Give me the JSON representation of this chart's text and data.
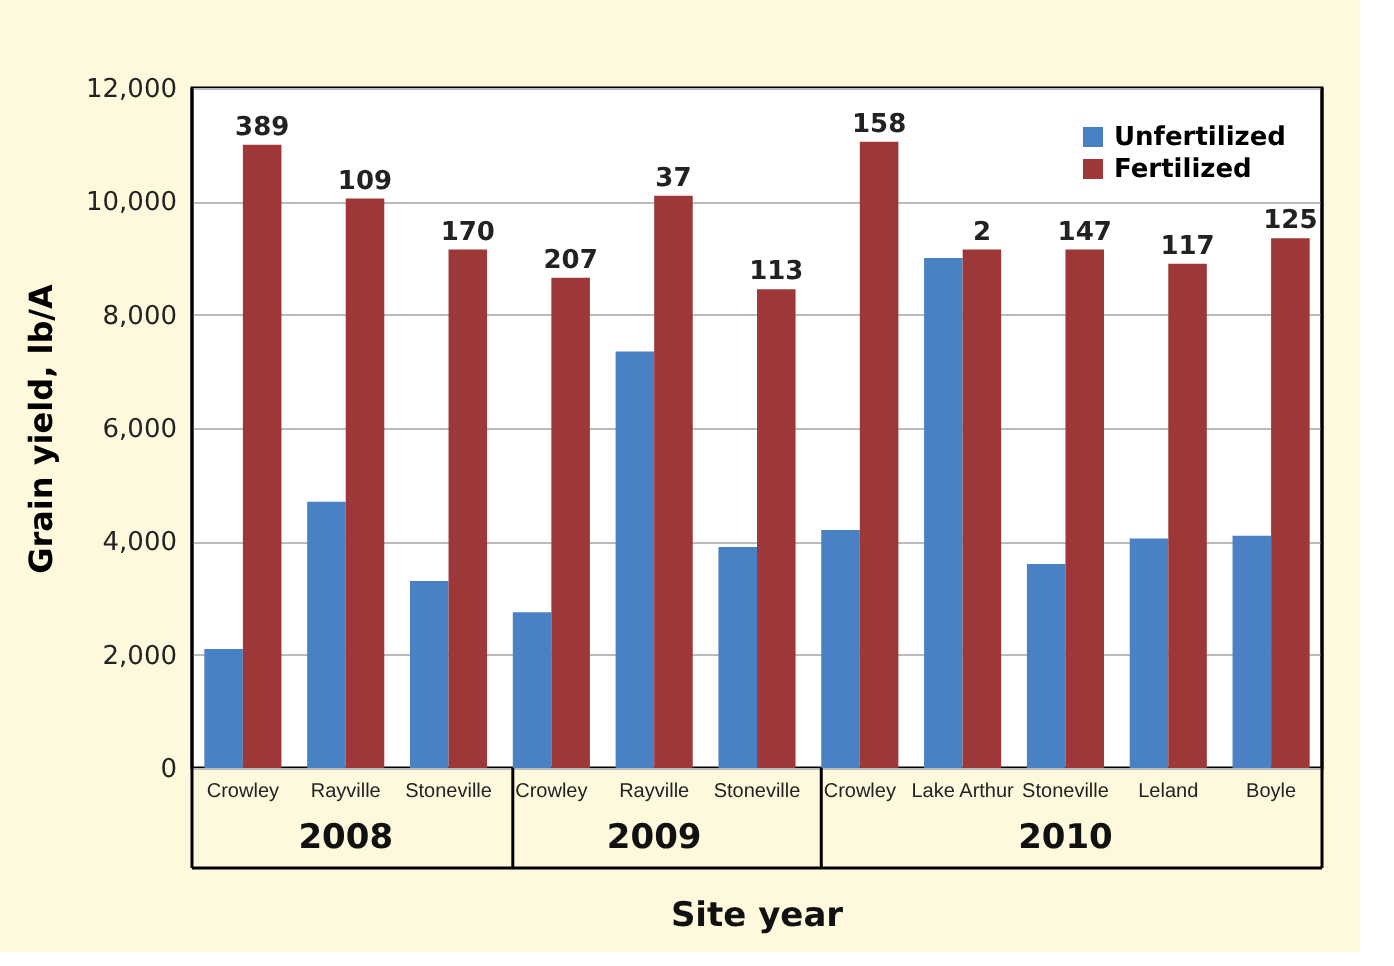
{
  "chart_data": {
    "type": "bar",
    "xlabel": "Site year",
    "ylabel": "Grain yield, lb/A",
    "categories": [
      "Crowley",
      "Rayville",
      "Stoneville",
      "Crowley",
      "Rayville",
      "Stoneville",
      "Crowley",
      "Lake Arthur",
      "Stoneville",
      "Leland",
      "Boyle"
    ],
    "series": [
      {
        "name": "Unfertilized",
        "color": "#4a80c4",
        "values": [
          2100,
          4700,
          3300,
          2750,
          7350,
          3900,
          4200,
          9000,
          3600,
          4050,
          4100
        ]
      },
      {
        "name": "Fertilized",
        "color": "#9e3838",
        "values": [
          11000,
          10050,
          9150,
          8650,
          10100,
          8450,
          11050,
          9150,
          9150,
          8900,
          9350
        ]
      }
    ],
    "annotations": [
      "2008",
      "2009",
      "2010",
      "389",
      "109",
      "170",
      "207",
      "37",
      "113",
      "158",
      "2",
      "147",
      "117",
      "125"
    ],
    "ylim": [
      0,
      12000
    ],
    "yticks": [
      0,
      {
        "value": 2000,
        "label": "2,000"
      },
      {
        "value": 4000,
        "label": "4,000"
      },
      {
        "value": 6000,
        "label": "6,000"
      },
      {
        "value": 8000,
        "label": "8,000"
      },
      {
        "value": 10000,
        "label": "10,000"
      },
      {
        "value": 12000,
        "label": "12,000"
      }
    ],
    "grid": "y",
    "legend": "top right"
  }
}
